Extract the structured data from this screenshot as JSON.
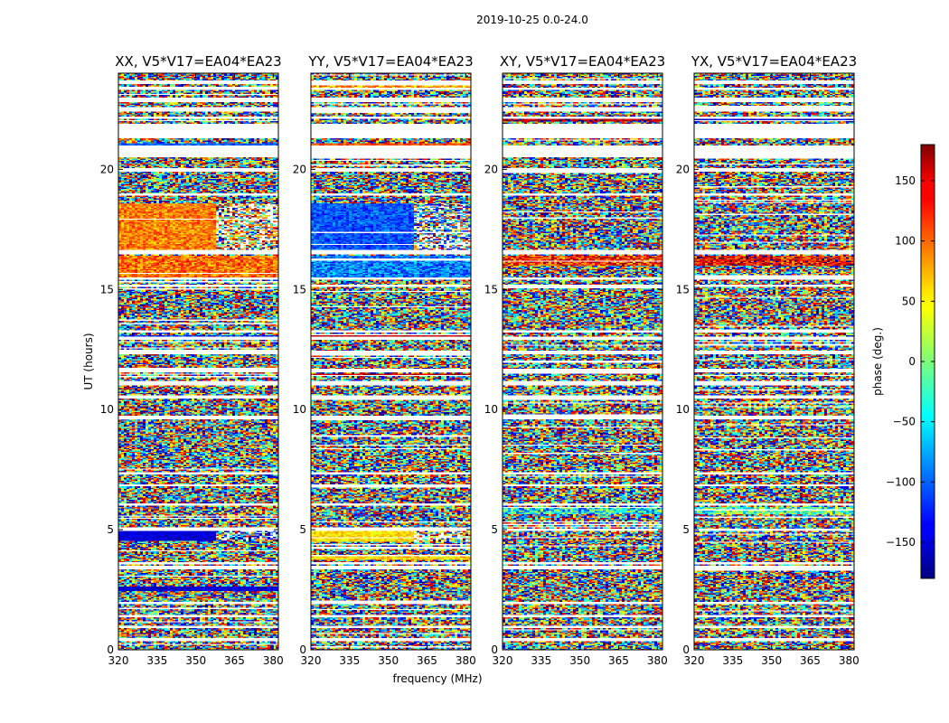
{
  "chart_data": {
    "type": "heatmap",
    "suptitle": "2019-10-25 0.0-24.0",
    "xlabel": "frequency (MHz)",
    "ylabel": "UT (hours)",
    "xlim": [
      320,
      382
    ],
    "ylim": [
      0,
      24
    ],
    "xticks": [
      320,
      335,
      350,
      365,
      380
    ],
    "yticks": [
      0,
      5,
      10,
      15,
      20
    ],
    "xtick_labels": [
      "320",
      "335",
      "350",
      "365",
      "380"
    ],
    "ytick_labels": [
      "0",
      "5",
      "10",
      "15",
      "20"
    ],
    "panels": [
      {
        "title": "XX, V5*V17=EA04*EA23",
        "correlation": "XX"
      },
      {
        "title": "YY, V5*V17=EA04*EA23",
        "correlation": "YY"
      },
      {
        "title": "XY, V5*V17=EA04*EA23",
        "correlation": "XY"
      },
      {
        "title": "YX, V5*V17=EA04*EA23",
        "correlation": "YX"
      }
    ],
    "colorbar": {
      "label": "phase (deg.)",
      "range": [
        -180,
        180
      ],
      "ticks": [
        -150,
        -100,
        -50,
        0,
        50,
        100,
        150
      ],
      "tick_labels": [
        "−150",
        "−100",
        "−50",
        "0",
        "50",
        "100",
        "150"
      ],
      "colormap": "jet"
    },
    "notes": "Phase values are noise-like per time/frequency cell; coherent phase in XX around ~+90° (15.5-18.5 h) and ~-150° (2.5 h, 4.8 h); YY ~-110° (17-18.5 h) and ~+50° (4.8 h)"
  }
}
